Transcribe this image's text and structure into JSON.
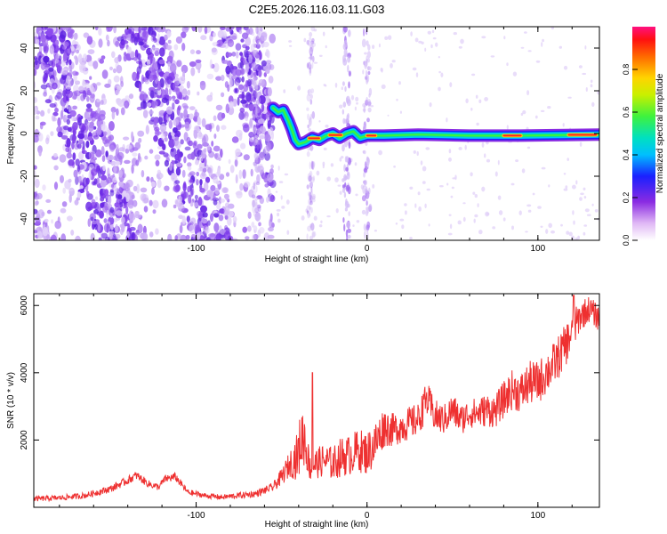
{
  "title": "C2E5.2026.116.03.11.G03",
  "colors": {
    "snr_line": "#ee3030",
    "axis": "#000000",
    "cloud": "#7a2ae8",
    "cloud_light": "#d8c2f6"
  },
  "chart_data": [
    {
      "type": "heatmap",
      "xlabel": "Height of straight line (km)",
      "ylabel": "Frequency (Hz)",
      "xlim": [
        -195,
        136
      ],
      "ylim": [
        -50,
        50
      ],
      "xticks": [
        -100,
        0,
        100
      ],
      "xtick_labels": [
        "-100",
        "0",
        "100"
      ],
      "yticks": [
        -40,
        -20,
        0,
        20,
        40
      ],
      "ytick_labels": [
        "-40",
        "-20",
        "0",
        "20",
        "40"
      ],
      "colorbar": {
        "label": "Normalized spectral amplitude",
        "range": [
          0,
          1
        ],
        "ticks": [
          0.0,
          0.2,
          0.4,
          0.6,
          0.8
        ],
        "tick_labels": [
          "0.0",
          "0.2",
          "0.4",
          "0.6",
          "0.8"
        ]
      },
      "ridge": {
        "x": [
          -55,
          -52,
          -49,
          -46,
          -44,
          -42,
          -40,
          -36,
          -32,
          -28,
          -24,
          -20,
          -16,
          -12,
          -8,
          -4,
          0,
          10,
          30,
          60,
          90,
          110,
          136
        ],
        "y": [
          12,
          10,
          11,
          6,
          2,
          -3,
          -5,
          -4,
          -2,
          -3,
          -1,
          0,
          -2,
          0,
          1,
          -2,
          -1,
          -1,
          -0.5,
          -1,
          -1,
          -0.8,
          -0.5
        ],
        "peak_segments": [
          [
            -34,
            -28
          ],
          [
            -22,
            -15
          ],
          [
            0,
            5
          ],
          [
            80,
            90
          ],
          [
            118,
            134
          ]
        ]
      }
    },
    {
      "type": "line",
      "xlabel": "Height of straight line (km)",
      "ylabel": "SNR (10 * v/v)",
      "xlim": [
        -195,
        136
      ],
      "ylim": [
        0,
        6350
      ],
      "xticks": [
        -100,
        0,
        100
      ],
      "xtick_labels": [
        "-100",
        "0",
        "100"
      ],
      "yticks": [
        2000,
        4000,
        6000
      ],
      "ytick_labels": [
        "2000",
        "4000",
        "6000"
      ],
      "series": [
        {
          "name": "SNR",
          "x": [
            -195,
            -180,
            -165,
            -150,
            -140,
            -135,
            -128,
            -122,
            -118,
            -112,
            -105,
            -95,
            -85,
            -75,
            -65,
            -55,
            -50,
            -45,
            -41,
            -39,
            -37,
            -35,
            -33,
            -30,
            -25,
            -20,
            -15,
            -10,
            -5,
            0,
            5,
            10,
            15,
            20,
            25,
            30,
            35,
            40,
            45,
            50,
            55,
            60,
            65,
            70,
            75,
            80,
            85,
            90,
            95,
            100,
            105,
            110,
            115,
            120,
            125,
            130,
            136
          ],
          "y": [
            250,
            280,
            350,
            550,
            800,
            950,
            700,
            600,
            850,
            900,
            450,
            350,
            300,
            350,
            400,
            600,
            900,
            1300,
            1500,
            1900,
            2200,
            1600,
            1100,
            1300,
            1400,
            1300,
            1500,
            1550,
            1700,
            1600,
            1900,
            2400,
            2300,
            2400,
            2500,
            2600,
            3200,
            2700,
            2600,
            2900,
            2600,
            2800,
            2800,
            2900,
            2850,
            3200,
            3500,
            3400,
            3700,
            3700,
            4000,
            4300,
            4700,
            5200,
            5700,
            5900,
            5600
          ],
          "noise_amp": [
            80,
            80,
            90,
            110,
            120,
            130,
            110,
            100,
            120,
            130,
            90,
            80,
            80,
            90,
            100,
            130,
            250,
            400,
            700,
            900,
            1000,
            600,
            350,
            450,
            500,
            500,
            600,
            600,
            650,
            650,
            700,
            600,
            500,
            500,
            500,
            500,
            550,
            500,
            450,
            500,
            450,
            450,
            450,
            500,
            500,
            550,
            600,
            600,
            650,
            650,
            650,
            650,
            650,
            600,
            450,
            400,
            380
          ],
          "spikes": [
            {
              "x": -32,
              "y": 4000
            },
            {
              "x": -40,
              "y": 2050
            },
            {
              "x": 121,
              "y": 6300
            },
            {
              "x": 33,
              "y": 3350
            }
          ]
        }
      ]
    }
  ]
}
